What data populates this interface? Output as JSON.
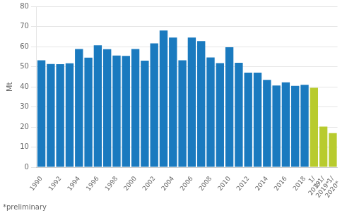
{
  "chart_data": {
    "type": "bar",
    "categories": [
      "1990",
      null,
      "1992",
      null,
      "1994",
      null,
      "1996",
      null,
      "1998",
      null,
      "2000",
      null,
      "2002",
      null,
      "2004",
      null,
      "2006",
      null,
      "2008",
      null,
      "2010",
      null,
      "2012",
      null,
      "2014",
      null,
      "2016",
      null,
      "2018",
      "1/\n2019",
      "1-1/\n2019*",
      "1/\n2020*"
    ],
    "values": [
      53.2,
      51.3,
      51.2,
      51.7,
      58.8,
      54.5,
      60.6,
      58.7,
      55.5,
      55.4,
      58.8,
      53.0,
      61.6,
      68.0,
      64.5,
      53.2,
      64.5,
      62.7,
      54.6,
      51.8,
      59.7,
      51.9,
      47.0,
      47.0,
      43.4,
      40.6,
      42.2,
      40.5,
      41.0,
      39.5,
      20.2,
      17.0
    ],
    "colors": [
      "#1a7abf",
      "#1a7abf",
      "#1a7abf",
      "#1a7abf",
      "#1a7abf",
      "#1a7abf",
      "#1a7abf",
      "#1a7abf",
      "#1a7abf",
      "#1a7abf",
      "#1a7abf",
      "#1a7abf",
      "#1a7abf",
      "#1a7abf",
      "#1a7abf",
      "#1a7abf",
      "#1a7abf",
      "#1a7abf",
      "#1a7abf",
      "#1a7abf",
      "#1a7abf",
      "#1a7abf",
      "#1a7abf",
      "#1a7abf",
      "#1a7abf",
      "#1a7abf",
      "#1a7abf",
      "#1a7abf",
      "#1a7abf",
      "#b8cb2e",
      "#b8cb2e",
      "#b8cb2e"
    ],
    "ylabel": "Mt",
    "annotations": [
      "*preliminary"
    ],
    "ylim": [
      0,
      80
    ],
    "yticks": [
      0,
      10,
      20,
      30,
      40,
      50,
      60,
      70,
      80
    ],
    "grid": true
  }
}
